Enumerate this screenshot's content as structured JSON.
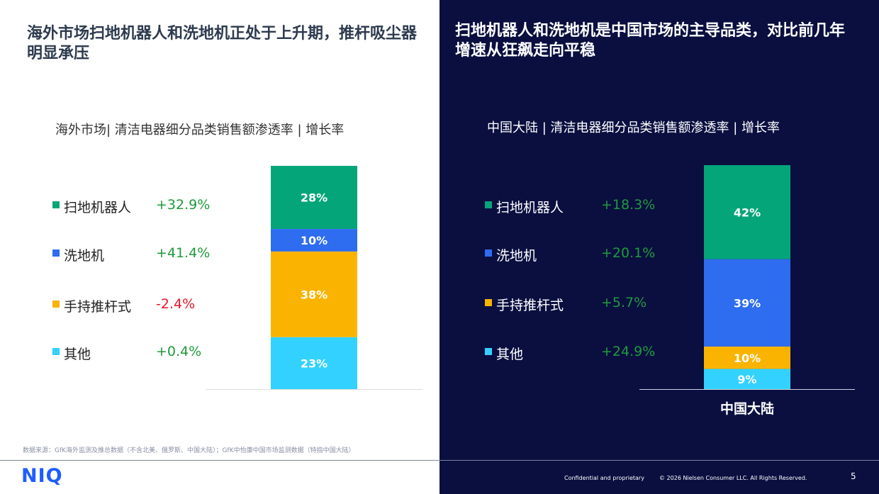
{
  "left_panel": {
    "headline": "海外市场扫地机器人和洗地机正处于上升期，推杆吸尘器明显承压"
  },
  "right_panel": {
    "headline": "扫地机器人和洗地机是中国市场的主导品类，对比前几年增速从狂飙走向平稳"
  },
  "footer": {
    "footnote": "数据来源：GfK海外监测及推总数据（不含北美、俄罗斯、中国大陆）；GfK中怡康中国市场监测数据（特指中国大陆）",
    "logo": "NIQ",
    "confidential": "Confidential and proprietary",
    "copyright": "© 2026 Nielsen Consumer LLC. All Rights Reserved.",
    "page_number": "5"
  },
  "colors": {
    "robot_vacuum": "#05a57a",
    "floor_washer": "#2e6cf0",
    "stick_vacuum": "#fab400",
    "other": "#33d1ff",
    "positive_growth": "#1f9a3c",
    "negative_growth": "#e8162b"
  },
  "chart_data": [
    {
      "type": "bar",
      "stacked": true,
      "title": "海外市场| 清洁电器细分品类销售额渗透率 | 增长率",
      "categories": [
        ""
      ],
      "series": [
        {
          "name": "扫地机器人",
          "values": [
            28
          ],
          "label": "28%",
          "growth": "+32.9%",
          "growth_sign": "positive"
        },
        {
          "name": "洗地机",
          "values": [
            10
          ],
          "label": "10%",
          "growth": "+41.4%",
          "growth_sign": "positive"
        },
        {
          "name": "手持推杆式",
          "values": [
            38
          ],
          "label": "38%",
          "growth": "-2.4%",
          "growth_sign": "negative"
        },
        {
          "name": "其他",
          "values": [
            23
          ],
          "label": "23%",
          "growth": "+0.4%",
          "growth_sign": "positive"
        }
      ],
      "legend_position": "left",
      "grid": false
    },
    {
      "type": "bar",
      "stacked": true,
      "title": "中国大陆 | 清洁电器细分品类销售额渗透率 | 增长率",
      "categories": [
        "中国大陆"
      ],
      "series": [
        {
          "name": "扫地机器人",
          "values": [
            42
          ],
          "label": "42%",
          "growth": "+18.3%",
          "growth_sign": "positive"
        },
        {
          "name": "洗地机",
          "values": [
            39
          ],
          "label": "39%",
          "growth": "+20.1%",
          "growth_sign": "positive"
        },
        {
          "name": "手持推杆式",
          "values": [
            10
          ],
          "label": "10%",
          "growth": "+5.7%",
          "growth_sign": "positive"
        },
        {
          "name": "其他",
          "values": [
            9
          ],
          "label": "9%",
          "growth": "+24.9%",
          "growth_sign": "positive"
        }
      ],
      "legend_position": "left",
      "grid": false
    }
  ]
}
